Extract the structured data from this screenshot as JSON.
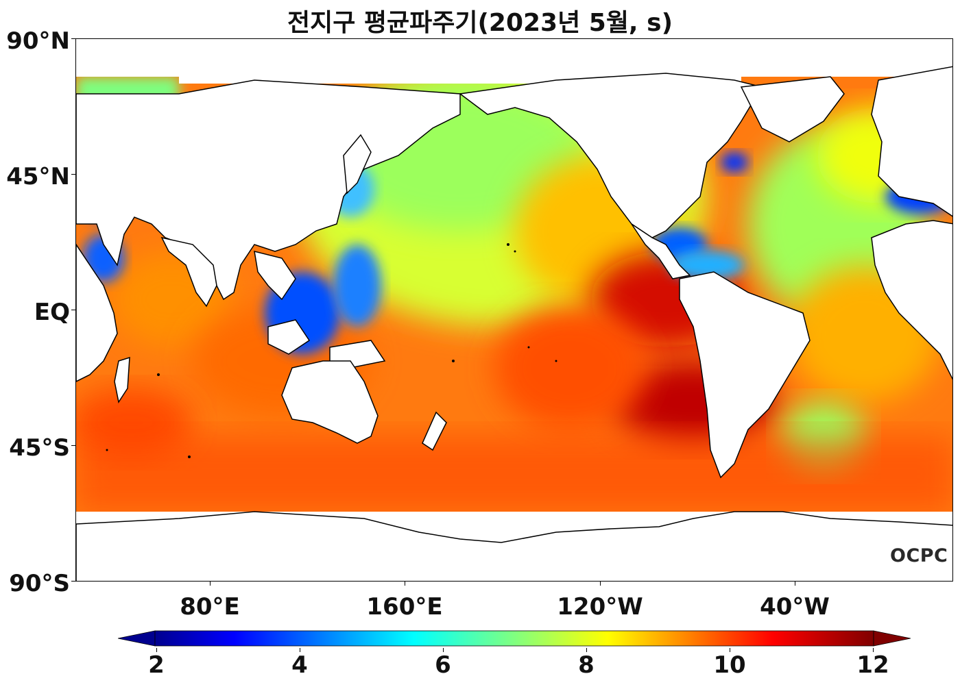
{
  "title": "전지구 평균파주기(2023년 5월, s)",
  "map": {
    "variable": "mean wave period",
    "unit": "s",
    "projection": "equirectangular, Pacific-centered",
    "ocean_colormap": "jet"
  },
  "axes": {
    "y_ticks": [
      "90°N",
      "45°N",
      "EQ",
      "45°S",
      "90°S"
    ],
    "x_ticks": [
      "80°E",
      "160°E",
      "120°W",
      "40°W"
    ]
  },
  "colorbar": {
    "ticks": [
      "2",
      "4",
      "6",
      "8",
      "10",
      "12"
    ],
    "min": 2,
    "max": 12,
    "extend": "both",
    "colors": [
      "#00007f",
      "#0000ff",
      "#0080ff",
      "#00ffff",
      "#80ff80",
      "#ffff00",
      "#ff8000",
      "#ff0000",
      "#7f0000"
    ]
  },
  "logo": "OCPC"
}
